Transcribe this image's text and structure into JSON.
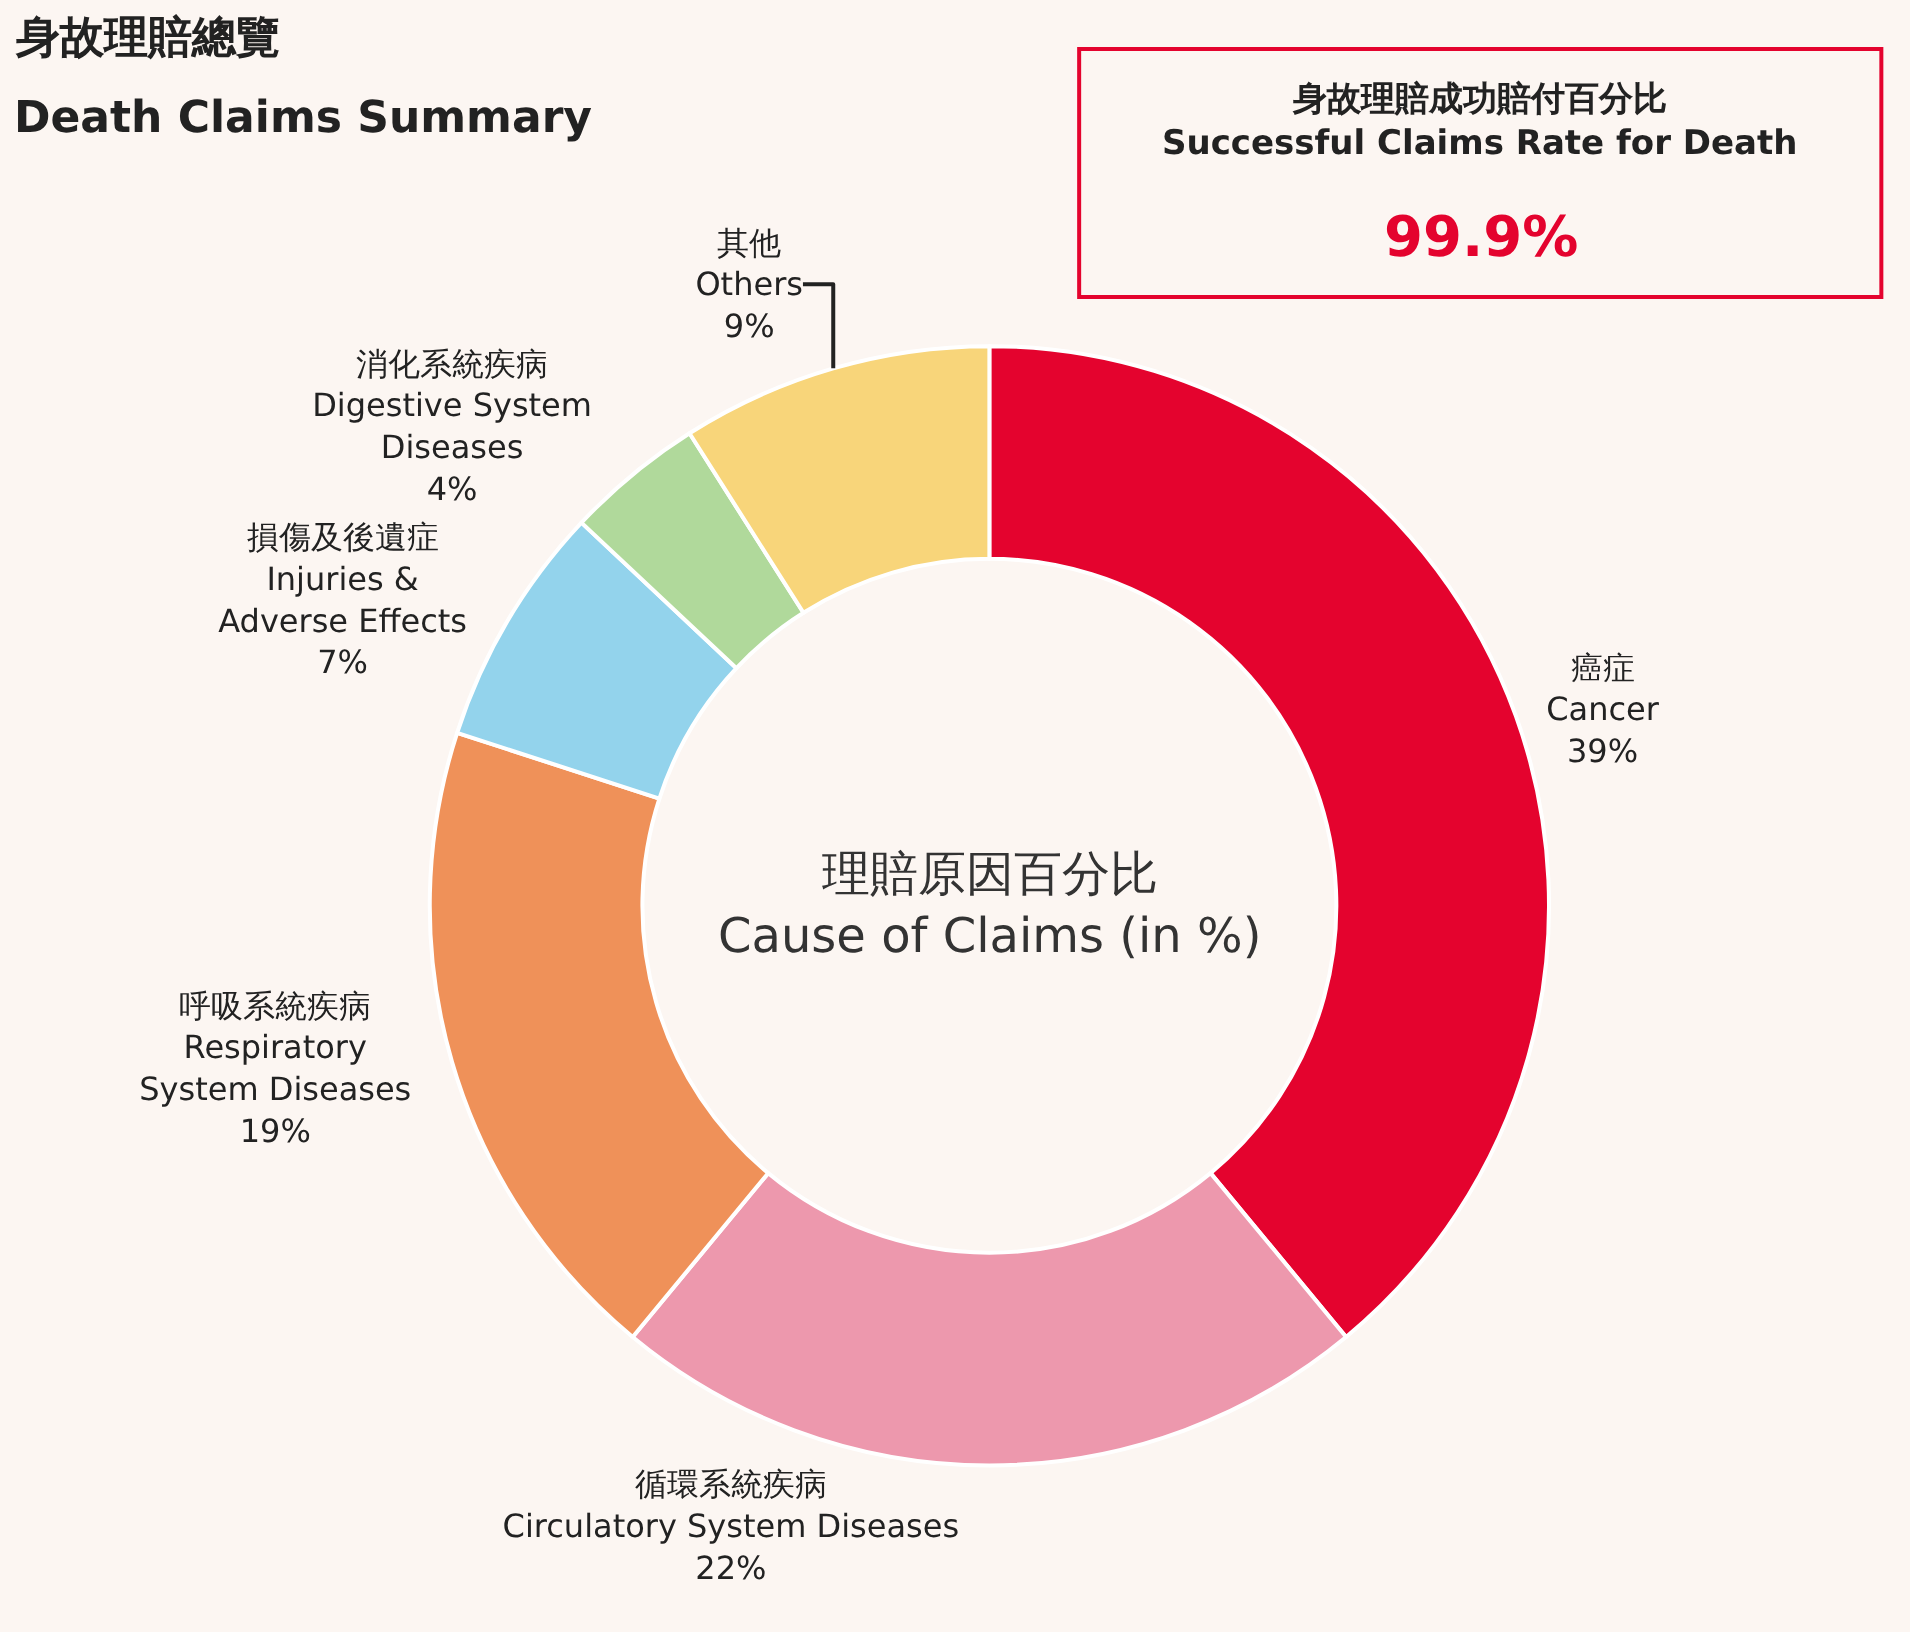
{
  "chart_data": {
    "type": "donut",
    "title": "身故理賠總覽",
    "subtitle": "Death Claims Summary",
    "categories": [
      "癌症\nCancer",
      "循環系統疾病\nCirculatory System Diseases",
      "呼吸系統疾病\nRespiratory\nSystem Diseases",
      "損傷及後遺症\nInjuries &\nAdverse Effects",
      "消化系統疾病\nDigestive System\nDiseases",
      "其他\nOthers"
    ],
    "values": [
      39,
      22,
      19,
      7,
      4,
      9
    ],
    "value_labels": [
      "39%",
      "22%",
      "19%",
      "7%",
      "4%",
      "9%"
    ],
    "colors": [
      "#e4032e",
      "#ed98ad",
      "#ef9159",
      "#93d3ec",
      "#b0d99b",
      "#f8d57a"
    ],
    "annotations": [
      "理賠原因百分比\nCause of Claims (in %)",
      "身故理賠成功賠付百分比\nSuccessful Claims Rate for Death",
      "99.9%"
    ],
    "legend": false
  }
}
